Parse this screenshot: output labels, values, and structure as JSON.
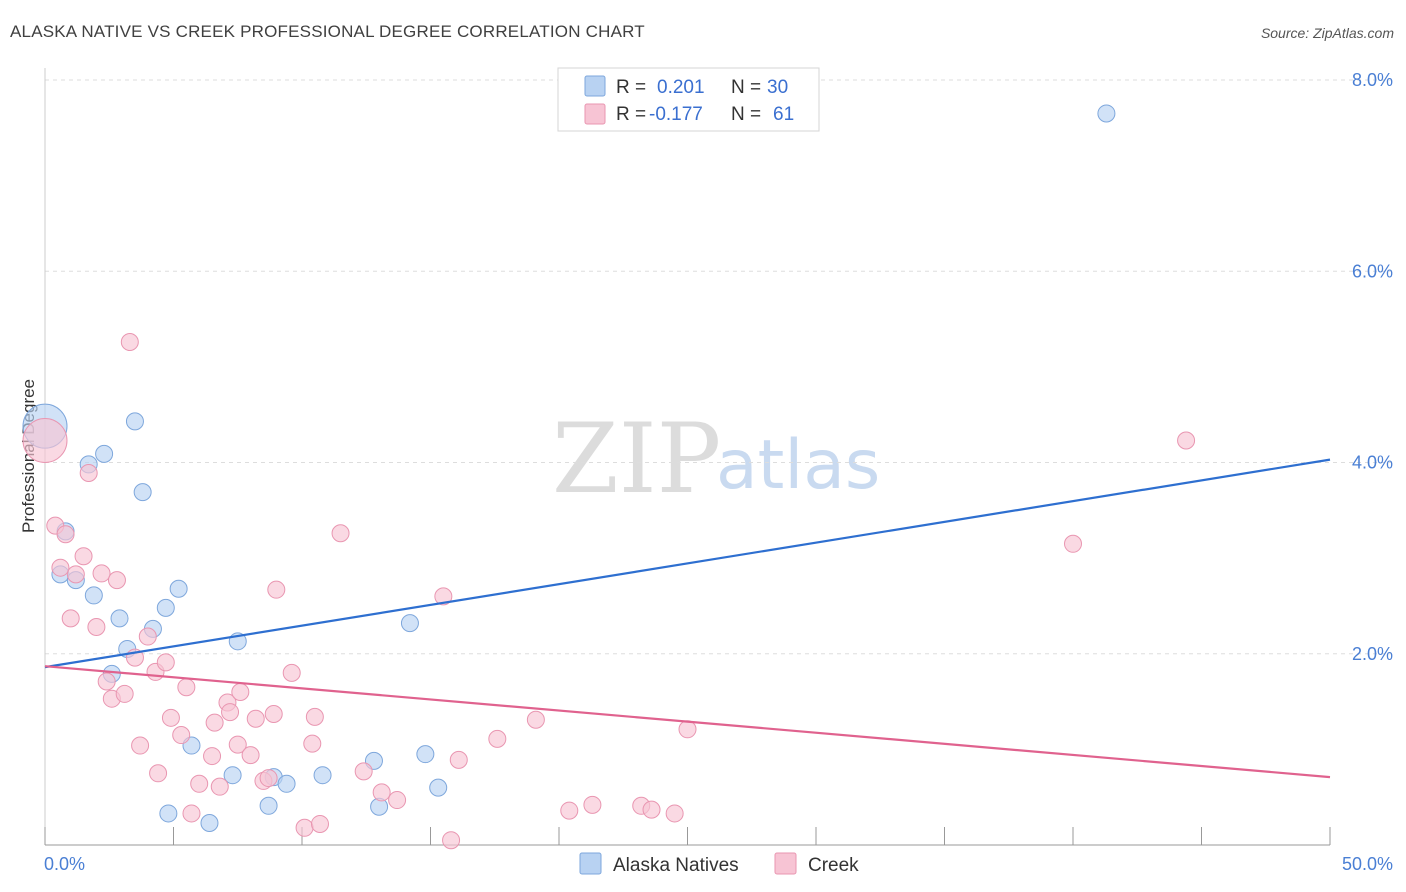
{
  "header": {
    "title": "ALASKA NATIVE VS CREEK PROFESSIONAL DEGREE CORRELATION CHART",
    "source": "Source: ZipAtlas.com"
  },
  "watermark": {
    "zip": "ZIP",
    "atlas": "atlas"
  },
  "legend": {
    "rows": [
      {
        "r_label": "R =",
        "r_value": "0.201",
        "n_label": "N =",
        "n_value": "30"
      },
      {
        "r_label": "R =",
        "r_value": "-0.177",
        "n_label": "N =",
        "n_value": "61"
      }
    ]
  },
  "bottom_legend": {
    "series1": "Alaska Natives",
    "series2": "Creek"
  },
  "colors": {
    "blue_fill": "#b8d2f2",
    "blue_stroke": "#7ea7dc",
    "blue_line": "#2e6fd0",
    "pink_fill": "#f7c4d4",
    "pink_stroke": "#e996b1",
    "pink_line": "#e0628e",
    "grid": "#dddddd",
    "tick_text": "#4a7fd4"
  },
  "chart_data": {
    "type": "scatter",
    "title": "ALASKA NATIVE VS CREEK PROFESSIONAL DEGREE CORRELATION CHART",
    "xlabel": "",
    "ylabel": "Professional Degree",
    "xlim": [
      0,
      50
    ],
    "ylim": [
      0,
      8.0
    ],
    "x_tick_labels": [
      "0.0%",
      "50.0%"
    ],
    "y_ticks": [
      2.0,
      4.0,
      6.0,
      8.0
    ],
    "y_tick_labels": [
      "2.0%",
      "4.0%",
      "6.0%",
      "8.0%"
    ],
    "series": [
      {
        "name": "Alaska Natives",
        "R": 0.201,
        "N": 30,
        "trend": {
          "x": [
            0,
            50
          ],
          "y": [
            1.86,
            4.03
          ]
        },
        "points": [
          {
            "x": 0.0,
            "y": 4.38,
            "big": true
          },
          {
            "x": 0.6,
            "y": 2.83
          },
          {
            "x": 0.8,
            "y": 3.28
          },
          {
            "x": 1.2,
            "y": 2.77
          },
          {
            "x": 1.7,
            "y": 3.98
          },
          {
            "x": 1.9,
            "y": 2.61
          },
          {
            "x": 2.3,
            "y": 4.09
          },
          {
            "x": 2.6,
            "y": 1.79
          },
          {
            "x": 2.9,
            "y": 2.37
          },
          {
            "x": 3.2,
            "y": 2.05
          },
          {
            "x": 3.5,
            "y": 4.43
          },
          {
            "x": 3.8,
            "y": 3.69
          },
          {
            "x": 4.2,
            "y": 2.26
          },
          {
            "x": 4.7,
            "y": 2.48
          },
          {
            "x": 4.8,
            "y": 0.33
          },
          {
            "x": 5.2,
            "y": 2.68
          },
          {
            "x": 5.7,
            "y": 1.04
          },
          {
            "x": 6.4,
            "y": 0.23
          },
          {
            "x": 7.3,
            "y": 0.73
          },
          {
            "x": 7.5,
            "y": 2.13
          },
          {
            "x": 8.7,
            "y": 0.41
          },
          {
            "x": 8.9,
            "y": 0.71
          },
          {
            "x": 9.4,
            "y": 0.64
          },
          {
            "x": 10.8,
            "y": 0.73
          },
          {
            "x": 12.8,
            "y": 0.88
          },
          {
            "x": 13.0,
            "y": 0.4
          },
          {
            "x": 14.2,
            "y": 2.32
          },
          {
            "x": 14.8,
            "y": 0.95
          },
          {
            "x": 15.3,
            "y": 0.6
          },
          {
            "x": 41.3,
            "y": 7.65
          }
        ]
      },
      {
        "name": "Creek",
        "R": -0.177,
        "N": 61,
        "trend": {
          "x": [
            0,
            50
          ],
          "y": [
            1.87,
            0.71
          ]
        },
        "points": [
          {
            "x": 0.0,
            "y": 4.23,
            "big": true
          },
          {
            "x": 0.4,
            "y": 3.34
          },
          {
            "x": 0.6,
            "y": 2.9
          },
          {
            "x": 0.8,
            "y": 3.25
          },
          {
            "x": 1.0,
            "y": 2.37
          },
          {
            "x": 1.2,
            "y": 2.83
          },
          {
            "x": 1.5,
            "y": 3.02
          },
          {
            "x": 1.7,
            "y": 3.89
          },
          {
            "x": 2.0,
            "y": 2.28
          },
          {
            "x": 2.2,
            "y": 2.84
          },
          {
            "x": 2.4,
            "y": 1.71
          },
          {
            "x": 2.6,
            "y": 1.53
          },
          {
            "x": 2.8,
            "y": 2.77
          },
          {
            "x": 3.1,
            "y": 1.58
          },
          {
            "x": 3.3,
            "y": 5.26
          },
          {
            "x": 3.5,
            "y": 1.96
          },
          {
            "x": 3.7,
            "y": 1.04
          },
          {
            "x": 4.0,
            "y": 2.18
          },
          {
            "x": 4.3,
            "y": 1.81
          },
          {
            "x": 4.4,
            "y": 0.75
          },
          {
            "x": 4.7,
            "y": 1.91
          },
          {
            "x": 4.9,
            "y": 1.33
          },
          {
            "x": 5.3,
            "y": 1.15
          },
          {
            "x": 5.5,
            "y": 1.65
          },
          {
            "x": 5.7,
            "y": 0.33
          },
          {
            "x": 6.0,
            "y": 0.64
          },
          {
            "x": 6.5,
            "y": 0.93
          },
          {
            "x": 6.6,
            "y": 1.28
          },
          {
            "x": 6.8,
            "y": 0.61
          },
          {
            "x": 7.1,
            "y": 1.49
          },
          {
            "x": 7.2,
            "y": 1.39
          },
          {
            "x": 7.5,
            "y": 1.05
          },
          {
            "x": 7.6,
            "y": 1.6
          },
          {
            "x": 8.0,
            "y": 0.94
          },
          {
            "x": 8.2,
            "y": 1.32
          },
          {
            "x": 8.5,
            "y": 0.67
          },
          {
            "x": 8.7,
            "y": 0.7
          },
          {
            "x": 8.9,
            "y": 1.37
          },
          {
            "x": 9.0,
            "y": 2.67
          },
          {
            "x": 9.6,
            "y": 1.8
          },
          {
            "x": 10.1,
            "y": 0.18
          },
          {
            "x": 10.4,
            "y": 1.06
          },
          {
            "x": 10.5,
            "y": 1.34
          },
          {
            "x": 10.7,
            "y": 0.22
          },
          {
            "x": 11.5,
            "y": 3.26
          },
          {
            "x": 12.4,
            "y": 0.77
          },
          {
            "x": 13.1,
            "y": 0.55
          },
          {
            "x": 13.7,
            "y": 0.47
          },
          {
            "x": 15.5,
            "y": 2.6
          },
          {
            "x": 15.8,
            "y": 0.05
          },
          {
            "x": 16.1,
            "y": 0.89
          },
          {
            "x": 17.6,
            "y": 1.11
          },
          {
            "x": 19.1,
            "y": 1.31
          },
          {
            "x": 20.4,
            "y": 0.36
          },
          {
            "x": 21.3,
            "y": 0.42
          },
          {
            "x": 23.2,
            "y": 0.41
          },
          {
            "x": 23.6,
            "y": 0.37
          },
          {
            "x": 24.5,
            "y": 0.33
          },
          {
            "x": 25.0,
            "y": 1.21
          },
          {
            "x": 40.0,
            "y": 3.15
          },
          {
            "x": 44.4,
            "y": 4.23
          }
        ]
      }
    ]
  }
}
